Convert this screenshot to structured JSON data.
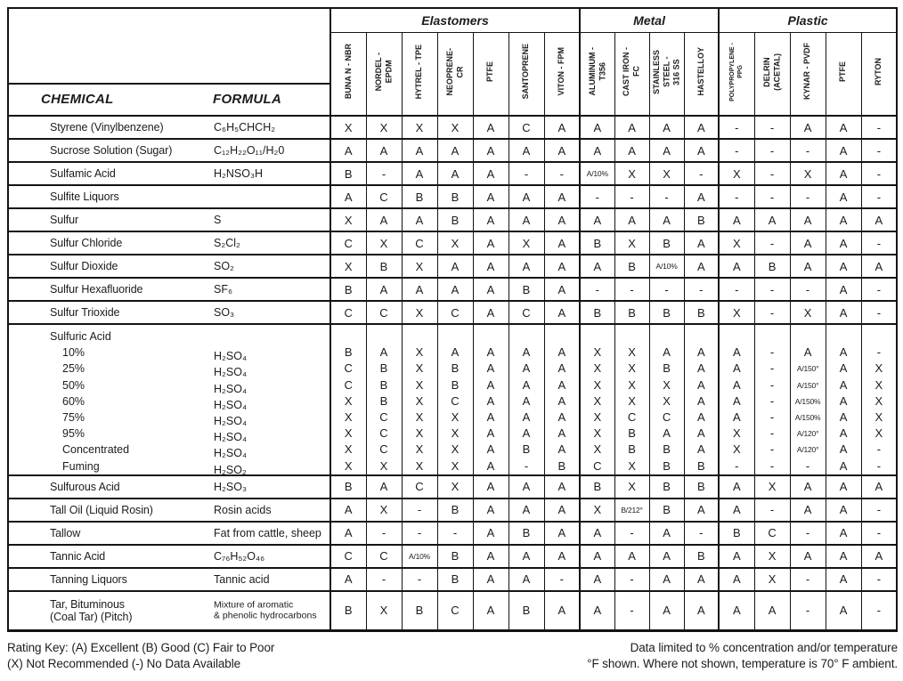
{
  "header": {
    "chemical_label": "CHEMICAL",
    "formula_label": "FORMULA",
    "groups": [
      {
        "label": "Elastomers",
        "span": 7
      },
      {
        "label": "Metal",
        "span": 4
      },
      {
        "label": "Plastic",
        "span": 5
      }
    ],
    "columns": [
      "BUNA N - NBR",
      "NORDEL -\nEPDM",
      "HYTREL - TPE",
      "NEOPRENE-\nCR",
      "PTFE",
      "SANTOPRENE",
      "VITON - FPM",
      "ALUMINUM -\nT356",
      "CAST IRON -\nFC",
      "STAINLESS\nSTEEL -\n316 SS",
      "HASTELLOY",
      "POLYPROPYLENE -\nPPG",
      "DELRIN\n(ACETAL)",
      "KYNAR - PVDF",
      "PTFE",
      "RYTON"
    ]
  },
  "rows": [
    {
      "chemical": "Styrene (Vinylbenzene)",
      "formula": "C₆H₅CHCH₂",
      "ratings": [
        "X",
        "X",
        "X",
        "X",
        "A",
        "C",
        "A",
        "A",
        "A",
        "A",
        "A",
        "-",
        "-",
        "A",
        "A",
        "-"
      ]
    },
    {
      "chemical": "Sucrose Solution (Sugar)",
      "formula": "C₁₂H₂₂O₁₁/H₂0",
      "ratings": [
        "A",
        "A",
        "A",
        "A",
        "A",
        "A",
        "A",
        "A",
        "A",
        "A",
        "A",
        "-",
        "-",
        "-",
        "A",
        "-"
      ]
    },
    {
      "chemical": "Sulfamic Acid",
      "formula": "H₂NSO₃H",
      "ratings": [
        "B",
        "-",
        "A",
        "A",
        "A",
        "-",
        "-",
        "A/10%",
        "X",
        "X",
        "-",
        "X",
        "-",
        "X",
        "A",
        "-"
      ]
    },
    {
      "chemical": "Sulfite Liquors",
      "formula": "",
      "ratings": [
        "A",
        "C",
        "B",
        "B",
        "A",
        "A",
        "A",
        "-",
        "-",
        "-",
        "A",
        "-",
        "-",
        "-",
        "A",
        "-"
      ]
    },
    {
      "chemical": "Sulfur",
      "formula": "S",
      "ratings": [
        "X",
        "A",
        "A",
        "B",
        "A",
        "A",
        "A",
        "A",
        "A",
        "A",
        "B",
        "A",
        "A",
        "A",
        "A",
        "A"
      ]
    },
    {
      "chemical": "Sulfur Chloride",
      "formula": "S₂Cl₂",
      "ratings": [
        "C",
        "X",
        "C",
        "X",
        "A",
        "X",
        "A",
        "B",
        "X",
        "B",
        "A",
        "X",
        "-",
        "A",
        "A",
        "-"
      ]
    },
    {
      "chemical": "Sulfur Dioxide",
      "formula": "SO₂",
      "ratings": [
        "X",
        "B",
        "X",
        "A",
        "A",
        "A",
        "A",
        "A",
        "B",
        "A/10%",
        "A",
        "A",
        "B",
        "A",
        "A",
        "A"
      ]
    },
    {
      "chemical": "Sulfur Hexafluoride",
      "formula": "SF₆",
      "ratings": [
        "B",
        "A",
        "A",
        "A",
        "A",
        "B",
        "A",
        "-",
        "-",
        "-",
        "-",
        "-",
        "-",
        "-",
        "A",
        "-"
      ]
    },
    {
      "chemical": "Sulfur Trioxide",
      "formula": "SO₃",
      "ratings": [
        "C",
        "C",
        "X",
        "C",
        "A",
        "C",
        "A",
        "B",
        "B",
        "B",
        "B",
        "X",
        "-",
        "X",
        "A",
        "-"
      ]
    },
    {
      "chemical": "Sulfuric Acid",
      "items": [
        {
          "name": "10%",
          "formula": "H₂SO₄",
          "ratings": [
            "B",
            "A",
            "X",
            "A",
            "A",
            "A",
            "A",
            "X",
            "X",
            "A",
            "A",
            "A",
            "-",
            "A",
            "A",
            "-"
          ]
        },
        {
          "name": "25%",
          "formula": "H₂SO₄",
          "ratings": [
            "C",
            "B",
            "X",
            "B",
            "A",
            "A",
            "A",
            "X",
            "X",
            "B",
            "A",
            "A",
            "-",
            "A/150°",
            "A",
            "X"
          ]
        },
        {
          "name": "50%",
          "formula": "H₂SO₄",
          "ratings": [
            "C",
            "B",
            "X",
            "B",
            "A",
            "A",
            "A",
            "X",
            "X",
            "X",
            "A",
            "A",
            "-",
            "A/150°",
            "A",
            "X"
          ]
        },
        {
          "name": "60%",
          "formula": "H₂SO₄",
          "ratings": [
            "X",
            "B",
            "X",
            "C",
            "A",
            "A",
            "A",
            "X",
            "X",
            "X",
            "A",
            "A",
            "-",
            "A/150%",
            "A",
            "X"
          ]
        },
        {
          "name": "75%",
          "formula": "H₂SO₄",
          "ratings": [
            "X",
            "C",
            "X",
            "X",
            "A",
            "A",
            "A",
            "X",
            "C",
            "C",
            "A",
            "A",
            "-",
            "A/150%",
            "A",
            "X"
          ]
        },
        {
          "name": "95%",
          "formula": "H₂SO₄",
          "ratings": [
            "X",
            "C",
            "X",
            "X",
            "A",
            "A",
            "A",
            "X",
            "B",
            "A",
            "A",
            "X",
            "-",
            "A/120°",
            "A",
            "X"
          ]
        },
        {
          "name": "Concentrated",
          "formula": "H₂SO₄",
          "ratings": [
            "X",
            "C",
            "X",
            "X",
            "A",
            "B",
            "A",
            "X",
            "B",
            "B",
            "A",
            "X",
            "-",
            "A/120°",
            "A",
            "-"
          ]
        },
        {
          "name": "Fuming",
          "formula": "H₂SO₂",
          "ratings": [
            "X",
            "X",
            "X",
            "X",
            "A",
            "-",
            "B",
            "C",
            "X",
            "B",
            "B",
            "-",
            "-",
            "-",
            "A",
            "-"
          ]
        }
      ]
    },
    {
      "chemical": "Sulfurous Acid",
      "formula": "H₂SO₃",
      "ratings": [
        "B",
        "A",
        "C",
        "X",
        "A",
        "A",
        "A",
        "B",
        "X",
        "B",
        "B",
        "A",
        "X",
        "A",
        "A",
        "A"
      ]
    },
    {
      "chemical": "Tall Oil (Liquid Rosin)",
      "formula": "Rosin acids",
      "ratings": [
        "A",
        "X",
        "-",
        "B",
        "A",
        "A",
        "A",
        "X",
        "B/212°",
        "B",
        "A",
        "A",
        "-",
        "A",
        "A",
        "-"
      ]
    },
    {
      "chemical": "Tallow",
      "formula": "Fat from cattle, sheep",
      "ratings": [
        "A",
        "-",
        "-",
        "-",
        "A",
        "B",
        "A",
        "A",
        "-",
        "A",
        "-",
        "B",
        "C",
        "-",
        "A",
        "-"
      ]
    },
    {
      "chemical": "Tannic Acid",
      "formula": "C₇₆H₅₂O₄₆",
      "ratings": [
        "C",
        "C",
        "A/10%",
        "B",
        "A",
        "A",
        "A",
        "A",
        "A",
        "A",
        "B",
        "A",
        "X",
        "A",
        "A",
        "A"
      ]
    },
    {
      "chemical": "Tanning Liquors",
      "formula": "Tannic acid",
      "ratings": [
        "A",
        "-",
        "-",
        "B",
        "A",
        "A",
        "-",
        "A",
        "-",
        "A",
        "A",
        "A",
        "X",
        "-",
        "A",
        "-"
      ]
    },
    {
      "chemical": "Tar, Bituminous\n(Coal Tar) (Pitch)",
      "formula": "Mixture of aromatic\n& phenolic hydrocarbons",
      "ratings": [
        "B",
        "X",
        "B",
        "C",
        "A",
        "B",
        "A",
        "A",
        "-",
        "A",
        "A",
        "A",
        "A",
        "-",
        "A",
        "-"
      ]
    }
  ],
  "footer": {
    "key_line1": "Rating Key: (A) Excellent (B) Good (C) Fair to Poor",
    "key_line2": "(X) Not Recommended (-) No Data Available",
    "note_line1": "Data limited to % concentration and/or temperature",
    "note_line2": "°F shown.  Where not shown, temperature is 70° F ambient."
  },
  "colors": {
    "ink": "#141414",
    "paper": "#ffffff"
  }
}
